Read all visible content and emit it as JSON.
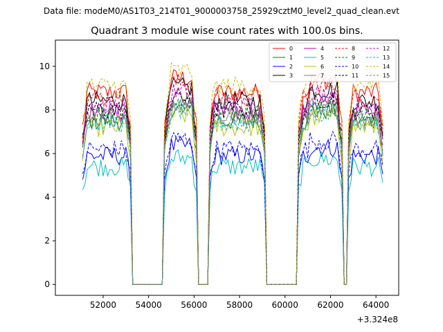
{
  "chart_data": {
    "type": "line",
    "suptitle": "Data file: modeM0/AS1T03_214T01_9000003758_25929cztM0_level2_quad_clean.evt",
    "title": "Quadrant 3 module wise count rates with 100.0s bins.",
    "xlabel": "",
    "ylabel": "",
    "x_offset_label": "+3.324e8",
    "xlim": [
      49900,
      65000
    ],
    "ylim": [
      -0.5,
      11.2
    ],
    "x_ticks": [
      52000,
      54000,
      56000,
      58000,
      60000,
      62000,
      64000
    ],
    "x_tick_labels": [
      "52000",
      "54000",
      "56000",
      "58000",
      "60000",
      "62000",
      "64000"
    ],
    "y_ticks": [
      0,
      2,
      4,
      6,
      8,
      10
    ],
    "y_tick_labels": [
      "0",
      "2",
      "4",
      "6",
      "8",
      "10"
    ],
    "grid": false,
    "legend_position": "top-right",
    "x_range": [
      51100,
      64300
    ],
    "bin_width": 100,
    "active_segments": [
      [
        51100,
        53200
      ],
      [
        54700,
        56100
      ],
      [
        56700,
        59100
      ],
      [
        60600,
        62500
      ],
      [
        62800,
        64300
      ]
    ],
    "series": [
      {
        "name": "0",
        "color": "#ff0000",
        "dash": "solid",
        "level": 8.8
      },
      {
        "name": "1",
        "color": "#008000",
        "dash": "solid",
        "level": 7.5
      },
      {
        "name": "2",
        "color": "#0000ff",
        "dash": "solid",
        "level": 5.9
      },
      {
        "name": "3",
        "color": "#000000",
        "dash": "solid",
        "level": 8.4
      },
      {
        "name": "4",
        "color": "#bf00bf",
        "dash": "solid",
        "level": 7.9
      },
      {
        "name": "5",
        "color": "#00bfbf",
        "dash": "solid",
        "level": 5.4
      },
      {
        "name": "6",
        "color": "#bfbf00",
        "dash": "solid",
        "level": 7.2
      },
      {
        "name": "7",
        "color": "#7f7f7f",
        "dash": "solid",
        "level": 7.7
      },
      {
        "name": "8",
        "color": "#ff0000",
        "dash": "dashed",
        "level": 8.6
      },
      {
        "name": "9",
        "color": "#008000",
        "dash": "dashed",
        "level": 7.8
      },
      {
        "name": "10",
        "color": "#0000ff",
        "dash": "dashed",
        "level": 6.2
      },
      {
        "name": "11",
        "color": "#000000",
        "dash": "dashed",
        "level": 8.0
      },
      {
        "name": "12",
        "color": "#bf00bf",
        "dash": "dashed",
        "level": 8.2
      },
      {
        "name": "13",
        "color": "#00bfbf",
        "dash": "dashed",
        "level": 7.4
      },
      {
        "name": "14",
        "color": "#bfbf00",
        "dash": "dashed",
        "level": 9.1
      },
      {
        "name": "15",
        "color": "#7f7f7f",
        "dash": "dashed",
        "level": 7.6
      }
    ]
  }
}
